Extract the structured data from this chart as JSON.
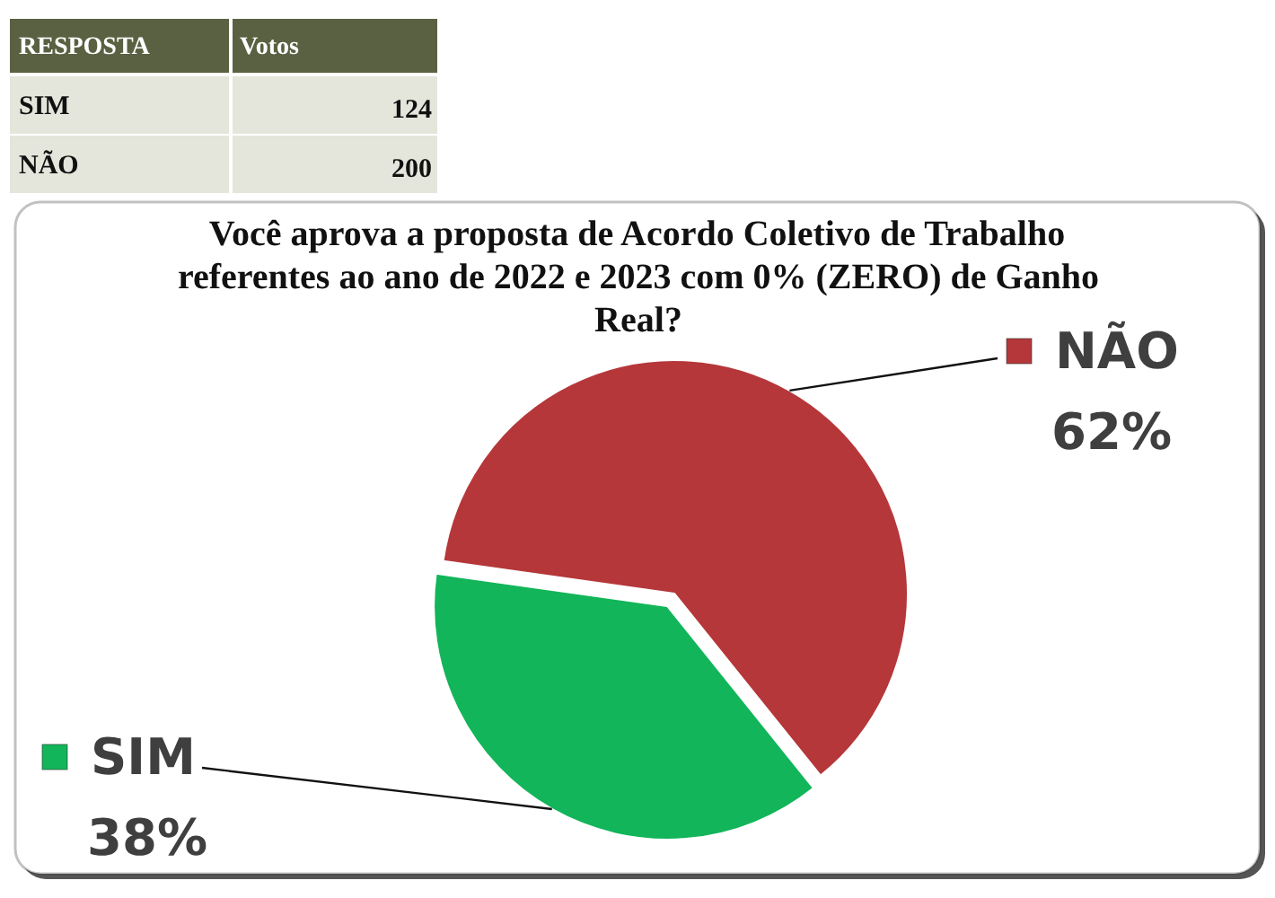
{
  "chart_data": [
    {
      "type": "other",
      "categories": [
        "SIM",
        "NÃO"
      ],
      "values": [
        124,
        200
      ],
      "data_labels": true,
      "annotations": [
        "RESPOSTA",
        "Votos"
      ]
    },
    {
      "type": "pie",
      "title": "Você aprova a proposta de Acordo Coletivo de Trabalho referentes ao ano de 2022 e 2023 com 0% (ZERO) de Ganho Real?",
      "categories": [
        "SIM",
        "NÃO"
      ],
      "values": [
        38,
        62
      ],
      "colors": [
        "#12b559",
        "#b5373a"
      ],
      "value_labels": [
        "38%",
        "62%"
      ],
      "legend": "top left"
    }
  ]
}
